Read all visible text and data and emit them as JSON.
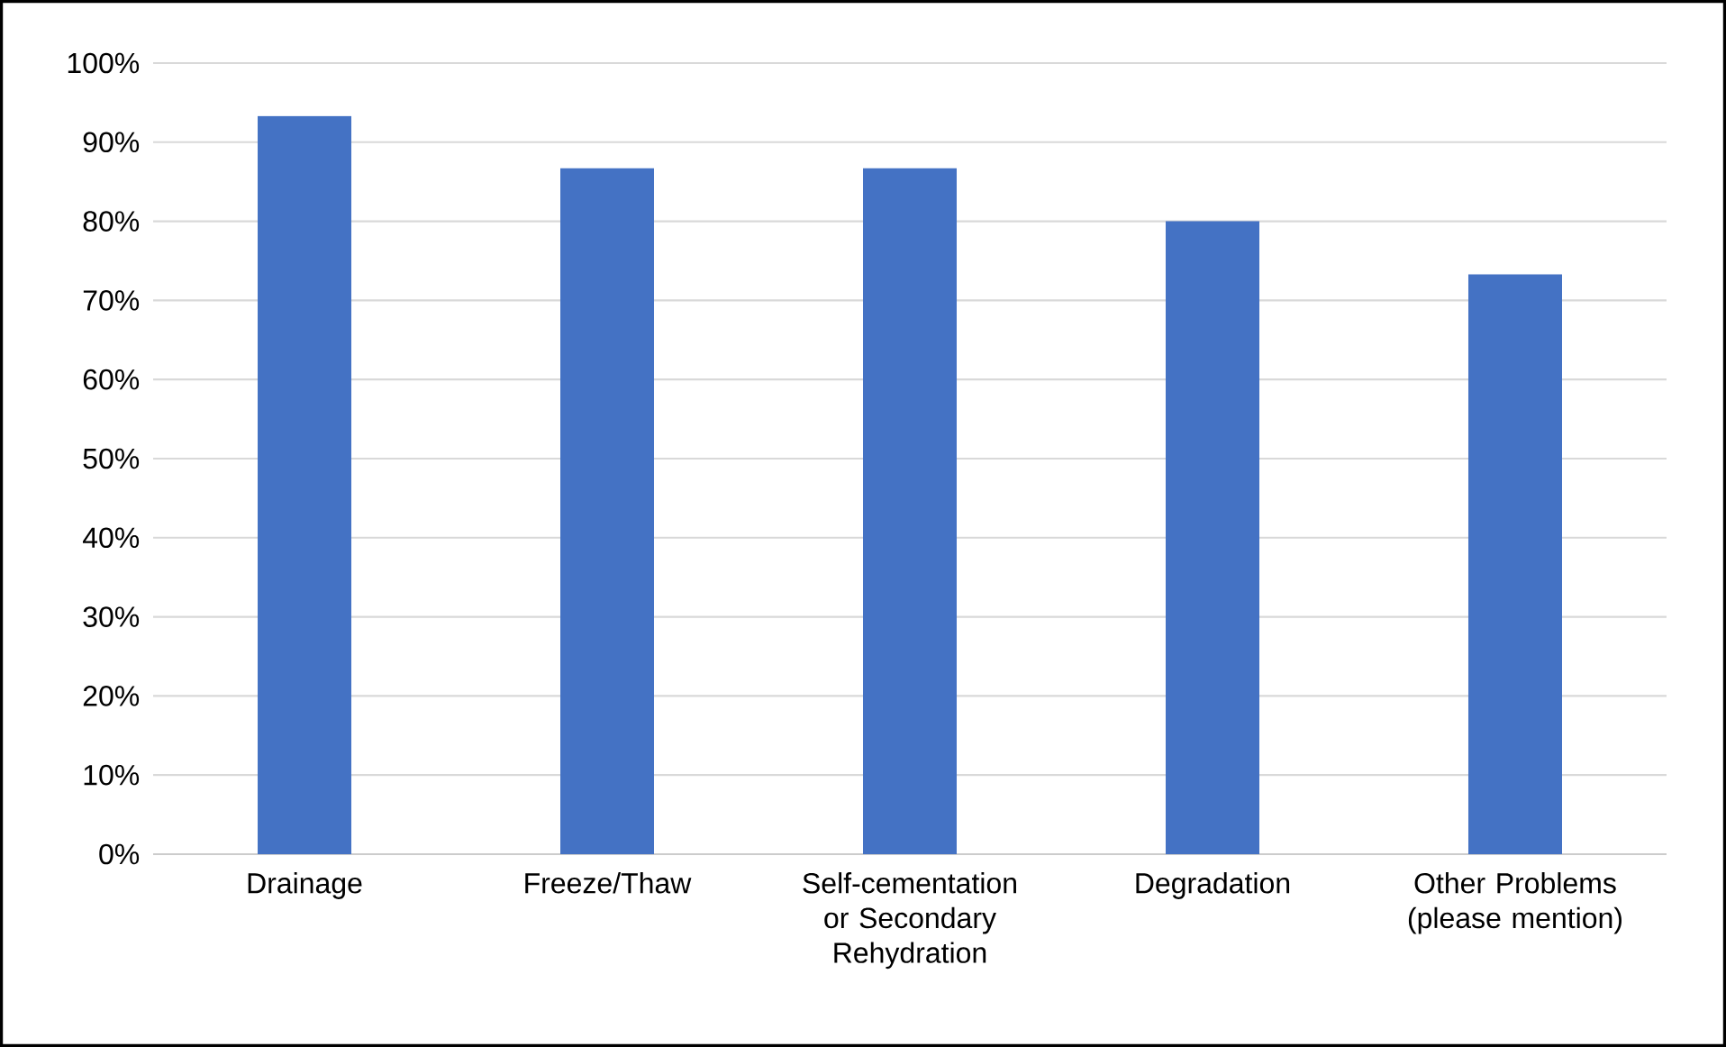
{
  "chart_data": {
    "type": "bar",
    "categories": [
      "Drainage",
      "Freeze/Thaw",
      "Self-cementation or Secondary Rehydration",
      "Degradation",
      "Other Problems (please mention)"
    ],
    "values": [
      93.3,
      86.7,
      86.7,
      80,
      73.3
    ],
    "color": "#4472c4",
    "ylim": [
      0,
      100
    ],
    "yticks": [
      {
        "value": 0,
        "label": "0%"
      },
      {
        "value": 10,
        "label": "10%"
      },
      {
        "value": 20,
        "label": "20%"
      },
      {
        "value": 30,
        "label": "30%"
      },
      {
        "value": 40,
        "label": "40%"
      },
      {
        "value": 50,
        "label": "50%"
      },
      {
        "value": 60,
        "label": "60%"
      },
      {
        "value": 70,
        "label": "70%"
      },
      {
        "value": 80,
        "label": "80%"
      },
      {
        "value": 90,
        "label": "90%"
      },
      {
        "value": 100,
        "label": "100%"
      }
    ],
    "grid": "y"
  }
}
